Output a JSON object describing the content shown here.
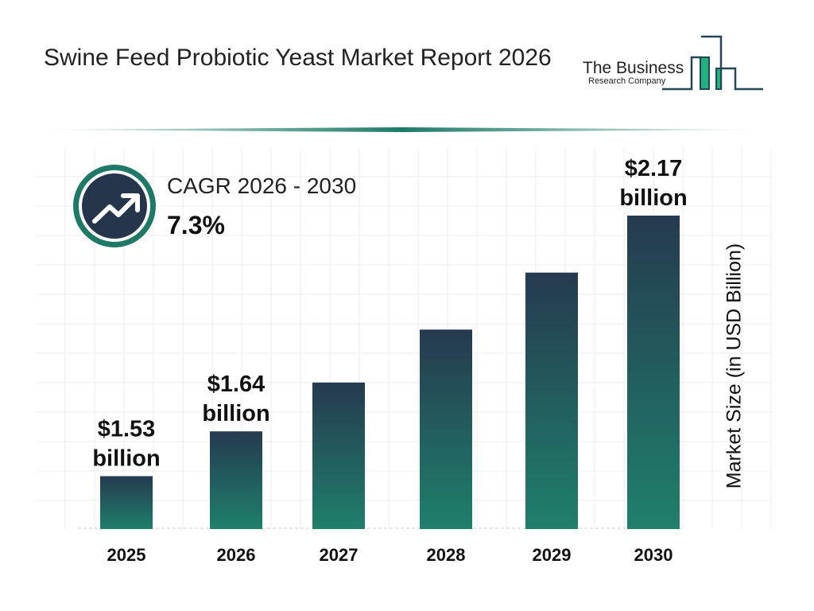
{
  "header": {
    "title": "Swine Feed Probiotic Yeast Market Report 2026"
  },
  "logo": {
    "line1": "The Business",
    "line2": "Research Company"
  },
  "cagr": {
    "label": "CAGR 2026 - 2030",
    "value": "7.3%",
    "icon": "trending-up-icon"
  },
  "colors": {
    "bar_top": "#253a50",
    "bar_bottom": "#1f806b",
    "accent": "#1e7a66"
  },
  "chart_data": {
    "type": "bar",
    "title": "Swine Feed Probiotic Yeast Market Report 2026",
    "categories": [
      "2025",
      "2026",
      "2027",
      "2028",
      "2029",
      "2030"
    ],
    "values": [
      1.53,
      1.64,
      1.76,
      1.89,
      2.03,
      2.17
    ],
    "data_labels": [
      [
        "$1.53",
        "billion"
      ],
      [
        "$1.64",
        "billion"
      ],
      null,
      null,
      null,
      [
        "$2.17",
        "billion"
      ]
    ],
    "xlabel": "",
    "ylabel": "Market Size (in USD Billion)",
    "ylim": [
      1.4,
      2.17
    ],
    "grid": true
  }
}
